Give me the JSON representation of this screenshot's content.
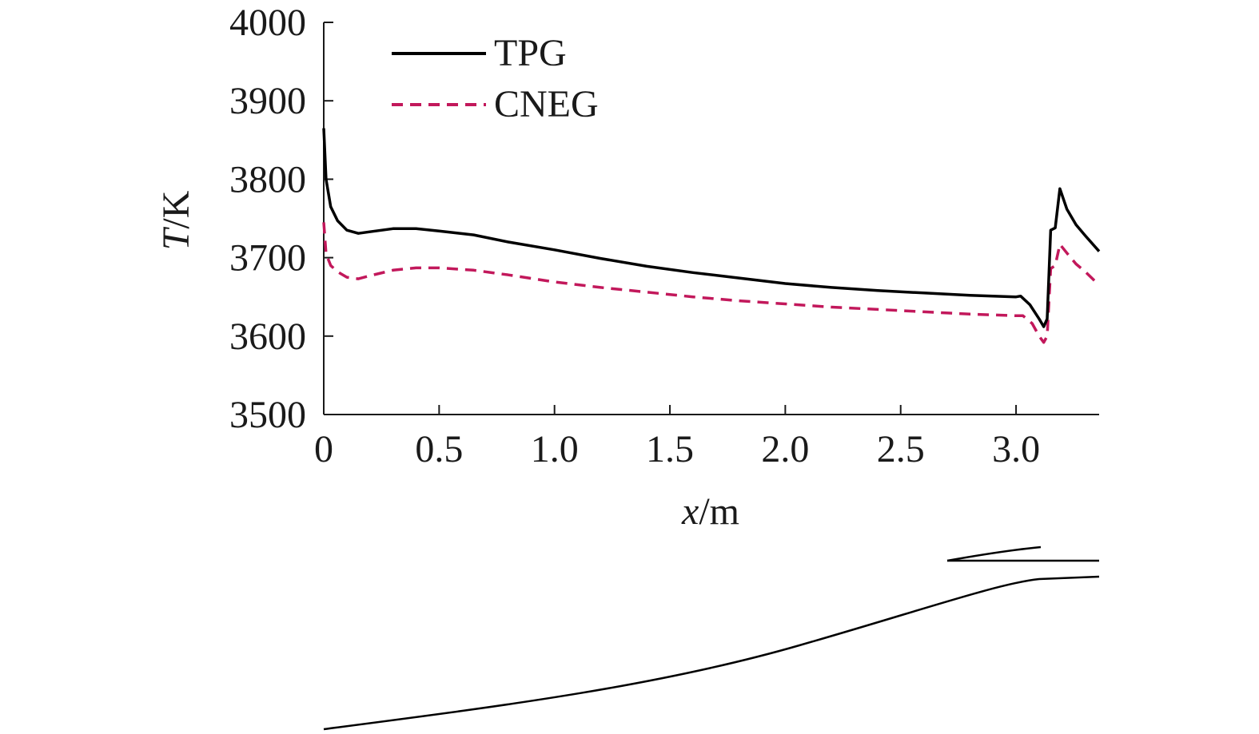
{
  "chart_data": {
    "type": "line",
    "xlabel_var": "x",
    "xlabel_unit": "/m",
    "ylabel_var": "T",
    "ylabel_unit": "/K",
    "xlim": [
      0,
      3.36
    ],
    "ylim": [
      3500,
      4000
    ],
    "x_ticks": [
      0,
      0.5,
      1.0,
      1.5,
      2.0,
      2.5,
      3.0
    ],
    "x_tick_labels": [
      "0",
      "0.5",
      "1.0",
      "1.5",
      "2.0",
      "2.5",
      "3.0"
    ],
    "y_ticks": [
      3500,
      3600,
      3700,
      3800,
      3900,
      4000
    ],
    "y_tick_labels": [
      "3500",
      "3600",
      "3700",
      "3800",
      "3900",
      "4000"
    ],
    "legend_position": "top-left",
    "series": [
      {
        "name": "TPG",
        "color": "#000000",
        "style": "solid",
        "x": [
          0,
          0.01,
          0.03,
          0.06,
          0.1,
          0.15,
          0.2,
          0.3,
          0.4,
          0.5,
          0.65,
          0.8,
          1.0,
          1.2,
          1.4,
          1.6,
          1.8,
          2.0,
          2.2,
          2.4,
          2.6,
          2.8,
          3.0,
          3.02,
          3.06,
          3.1,
          3.12,
          3.135,
          3.15,
          3.17,
          3.19,
          3.22,
          3.26,
          3.3,
          3.36
        ],
        "y": [
          3865,
          3800,
          3765,
          3747,
          3735,
          3731,
          3733,
          3737,
          3737,
          3734,
          3729,
          3720,
          3710,
          3699,
          3689,
          3681,
          3674,
          3667,
          3662,
          3658,
          3655,
          3652,
          3650,
          3651,
          3640,
          3622,
          3612,
          3622,
          3735,
          3738,
          3788,
          3762,
          3742,
          3728,
          3708
        ]
      },
      {
        "name": "CNEG",
        "color": "#c2185b",
        "style": "dashed",
        "x": [
          0,
          0.01,
          0.03,
          0.06,
          0.1,
          0.15,
          0.2,
          0.3,
          0.4,
          0.5,
          0.65,
          0.8,
          1.0,
          1.2,
          1.4,
          1.6,
          1.8,
          2.0,
          2.2,
          2.4,
          2.6,
          2.8,
          3.0,
          3.03,
          3.07,
          3.1,
          3.12,
          3.135,
          3.15,
          3.17,
          3.19,
          3.22,
          3.26,
          3.3,
          3.36
        ],
        "y": [
          3745,
          3705,
          3690,
          3682,
          3675,
          3673,
          3677,
          3684,
          3687,
          3687,
          3684,
          3678,
          3669,
          3662,
          3656,
          3650,
          3645,
          3641,
          3637,
          3634,
          3631,
          3628,
          3626,
          3626,
          3616,
          3600,
          3592,
          3600,
          3686,
          3690,
          3717,
          3706,
          3692,
          3682,
          3665
        ]
      }
    ]
  },
  "colors": {
    "tpg": "#000000",
    "cneg": "#c2185b"
  }
}
